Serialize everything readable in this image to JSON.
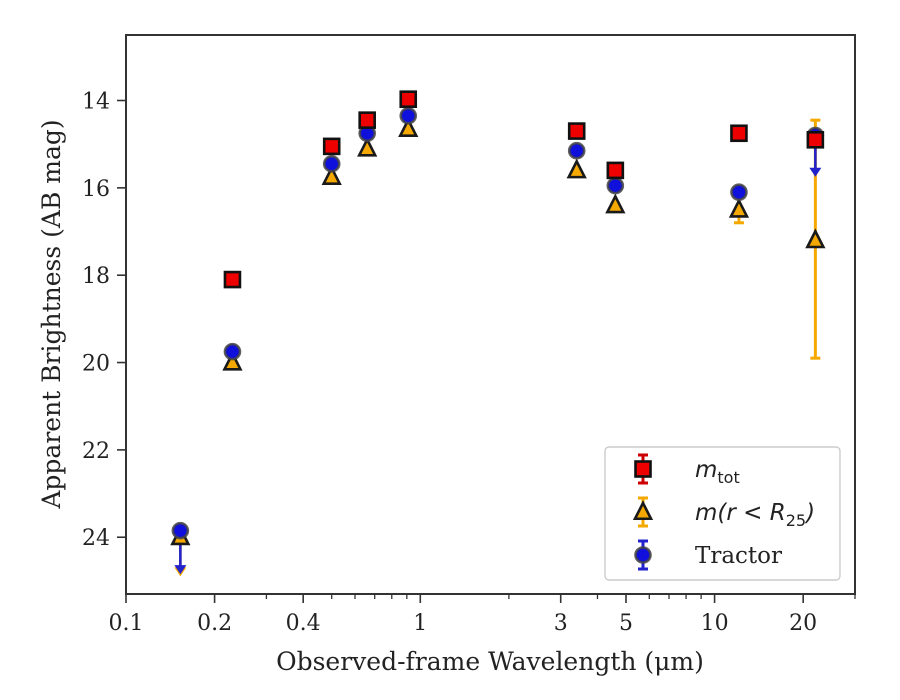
{
  "chart_data": {
    "type": "scatter",
    "title": "",
    "xlabel": "Observed-frame Wavelength (μm)",
    "ylabel": "Apparent Brightness (AB mag)",
    "xscale": "log",
    "xlim": [
      0.1,
      30
    ],
    "ylim": [
      25.3,
      12.5
    ],
    "y_inverted": true,
    "x_ticks": [
      {
        "value": 0.1,
        "label": "0.1"
      },
      {
        "value": 0.2,
        "label": "0.2"
      },
      {
        "value": 0.4,
        "label": "0.4"
      },
      {
        "value": 1,
        "label": "1"
      },
      {
        "value": 3,
        "label": "3"
      },
      {
        "value": 5,
        "label": "5"
      },
      {
        "value": 10,
        "label": "10"
      },
      {
        "value": 20,
        "label": "20"
      }
    ],
    "y_ticks": [
      {
        "value": 14,
        "label": "14"
      },
      {
        "value": 16,
        "label": "16"
      },
      {
        "value": 18,
        "label": "18"
      },
      {
        "value": 20,
        "label": "20"
      },
      {
        "value": 22,
        "label": "22"
      },
      {
        "value": 24,
        "label": "24"
      }
    ],
    "grid": false,
    "legend_position": "lower-right",
    "series": [
      {
        "name": "m_tot",
        "legend_main": "m",
        "legend_sub": "tot",
        "marker": "square",
        "face_color": "#ee0000",
        "edge_color": "#111111",
        "err_color": "#cc0000",
        "points": [
          {
            "x": 0.23,
            "y": 18.1,
            "err": 0.1
          },
          {
            "x": 0.5,
            "y": 15.05,
            "err": 0.05
          },
          {
            "x": 0.66,
            "y": 14.45,
            "err": 0.05
          },
          {
            "x": 0.91,
            "y": 13.97,
            "err": 0.05
          },
          {
            "x": 3.4,
            "y": 14.7,
            "err": 0.05
          },
          {
            "x": 4.6,
            "y": 15.6,
            "err": 0.05
          },
          {
            "x": 12.1,
            "y": 14.75,
            "err": 0.05
          },
          {
            "x": 22.0,
            "y": 14.9,
            "err": 0.1
          }
        ]
      },
      {
        "name": "m(r < R_25)",
        "legend_main": "m(r < R",
        "legend_sub": "25",
        "legend_tail": ")",
        "marker": "triangle",
        "face_color": "#f5a800",
        "edge_color": "#1a1a1a",
        "err_color": "#f5a800",
        "points": [
          {
            "x": 0.153,
            "y": 24.0,
            "upper_limit": true,
            "arrow_to": 24.85
          },
          {
            "x": 0.23,
            "y": 20.0
          },
          {
            "x": 0.5,
            "y": 15.75
          },
          {
            "x": 0.66,
            "y": 15.1
          },
          {
            "x": 0.91,
            "y": 14.65
          },
          {
            "x": 3.4,
            "y": 15.6
          },
          {
            "x": 4.6,
            "y": 16.4
          },
          {
            "x": 12.1,
            "y": 16.5,
            "err": 0.3
          },
          {
            "x": 22.0,
            "y": 17.2,
            "err_low": 14.45,
            "err_high": 19.9
          }
        ]
      },
      {
        "name": "Tractor",
        "legend_main": "Tractor",
        "marker": "circle",
        "face_color": "#1010dd",
        "edge_color": "#444444",
        "err_color": "#2222cc",
        "points": [
          {
            "x": 0.153,
            "y": 23.85,
            "upper_limit": true,
            "arrow_to": 24.8
          },
          {
            "x": 0.23,
            "y": 19.75
          },
          {
            "x": 0.5,
            "y": 15.45
          },
          {
            "x": 0.66,
            "y": 14.75
          },
          {
            "x": 0.91,
            "y": 14.35
          },
          {
            "x": 3.4,
            "y": 15.15
          },
          {
            "x": 4.6,
            "y": 15.95
          },
          {
            "x": 12.1,
            "y": 16.1
          },
          {
            "x": 22.0,
            "y": 14.8,
            "upper_limit": true,
            "arrow_to": 15.7
          }
        ]
      }
    ]
  }
}
